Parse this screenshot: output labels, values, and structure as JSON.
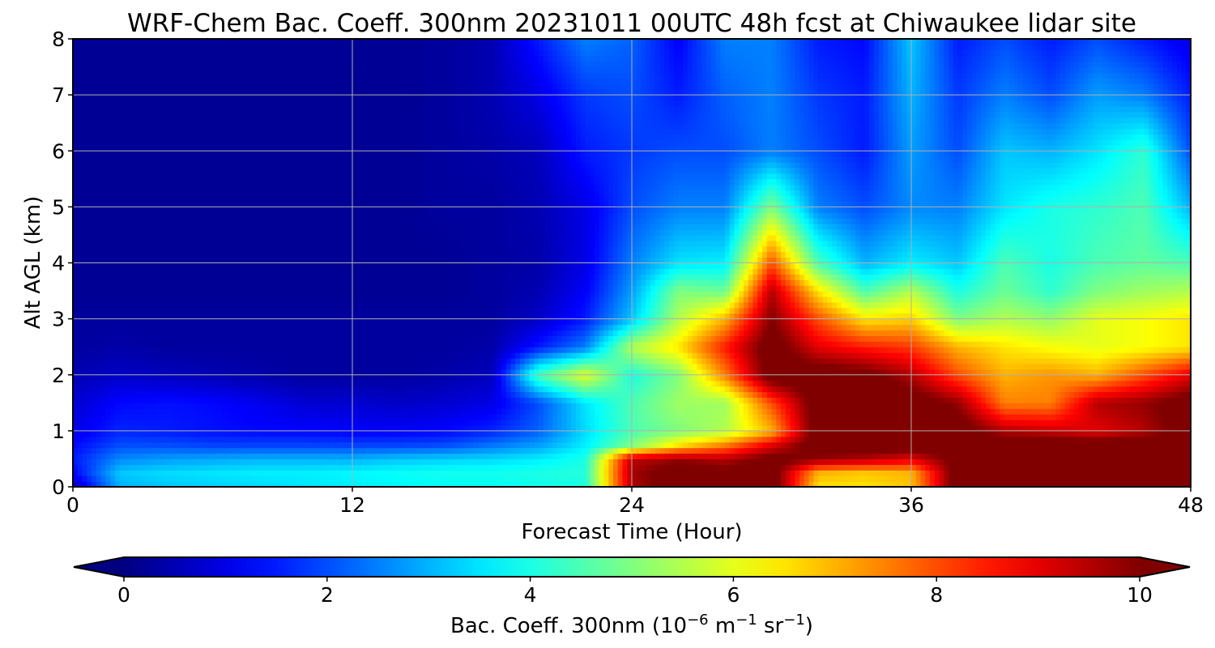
{
  "chart_data": {
    "type": "heatmap",
    "title": "WRF-Chem Bac. Coeff. 300nm  20231011 00UTC 48h fcst at Chiwaukee lidar site",
    "xlabel": "Forecast Time (Hour)",
    "ylabel": "Alt AGL (km)",
    "xlim": [
      0,
      48
    ],
    "ylim": [
      0,
      8
    ],
    "xticks": [
      "0",
      "12",
      "24",
      "36",
      "48"
    ],
    "yticks": [
      "0",
      "1",
      "2",
      "3",
      "4",
      "5",
      "6",
      "7",
      "8"
    ],
    "grid": true,
    "colormap": "jet",
    "colorbar": {
      "orientation": "horizontal",
      "placement": "bottom",
      "extend": "both",
      "range": [
        0,
        10
      ],
      "ticks": [
        "0",
        "2",
        "4",
        "6",
        "8",
        "10"
      ],
      "label_main": "Bac. Coeff. 300nm  (10",
      "label_exp1": "−6",
      "label_mid": " m",
      "label_exp2": "−1",
      "label_mid2": " sr",
      "label_exp3": "−1",
      "label_end": ")"
    },
    "x": [
      0,
      2,
      4,
      6,
      8,
      10,
      12,
      14,
      16,
      18,
      20,
      22,
      24,
      26,
      28,
      30,
      32,
      34,
      36,
      38,
      40,
      42,
      44,
      46,
      48
    ],
    "y": [
      0,
      0.25,
      0.5,
      0.75,
      1,
      1.5,
      2,
      2.5,
      3,
      3.5,
      4,
      5,
      6,
      7,
      8
    ],
    "z": [
      [
        0.5,
        3.0,
        3.2,
        3.3,
        3.4,
        3.5,
        3.6,
        3.7,
        3.8,
        3.8,
        3.9,
        4.0,
        9.5,
        10.5,
        10.2,
        10.5,
        6.5,
        6.5,
        6.8,
        10.5,
        10.5,
        10.5,
        10.5,
        10.5,
        10.5
      ],
      [
        1.2,
        3.2,
        3.4,
        3.5,
        3.6,
        3.6,
        3.7,
        3.8,
        3.9,
        3.9,
        4.0,
        4.1,
        9.6,
        10.5,
        10.2,
        10.5,
        7.0,
        6.8,
        7.0,
        10.5,
        10.5,
        10.5,
        10.5,
        10.5,
        10.5
      ],
      [
        1.5,
        2.6,
        2.8,
        2.9,
        3.0,
        3.0,
        3.0,
        3.2,
        3.3,
        3.4,
        3.6,
        4.0,
        9.4,
        9.8,
        9.5,
        10.3,
        9.8,
        9.5,
        9.0,
        10.3,
        10.5,
        10.5,
        10.5,
        10.5,
        10.5
      ],
      [
        1.3,
        2.0,
        2.0,
        1.9,
        1.9,
        1.9,
        1.9,
        1.9,
        2.0,
        2.4,
        2.8,
        3.6,
        5.0,
        6.5,
        7.5,
        9.0,
        10.5,
        10.5,
        10.5,
        10.5,
        10.5,
        10.5,
        10.5,
        10.5,
        10.5
      ],
      [
        1.0,
        1.6,
        1.5,
        1.4,
        1.3,
        1.3,
        1.2,
        1.2,
        1.3,
        1.6,
        2.2,
        3.4,
        4.5,
        5.0,
        5.5,
        7.0,
        10.5,
        10.5,
        10.5,
        10.5,
        9.5,
        9.3,
        9.0,
        9.5,
        10.5
      ],
      [
        0.8,
        1.3,
        1.4,
        1.3,
        1.1,
        0.8,
        0.8,
        0.7,
        0.8,
        1.0,
        2.0,
        3.5,
        4.5,
        5.3,
        5.3,
        8.0,
        10.5,
        10.5,
        10.5,
        9.8,
        7.5,
        7.5,
        9.5,
        9.8,
        10.5
      ],
      [
        0.5,
        0.7,
        0.6,
        0.5,
        0.4,
        0.3,
        0.3,
        0.3,
        0.4,
        0.6,
        4.5,
        6.0,
        4.0,
        5.0,
        7.5,
        10.5,
        10.5,
        10.3,
        9.5,
        8.0,
        7.0,
        7.3,
        7.0,
        8.0,
        9.0
      ],
      [
        0.3,
        0.4,
        0.3,
        0.3,
        0.3,
        0.3,
        0.3,
        0.3,
        0.3,
        0.4,
        1.5,
        2.5,
        5.5,
        6.5,
        8.5,
        10.5,
        9.0,
        8.5,
        8.2,
        7.0,
        6.5,
        6.2,
        6.0,
        6.2,
        6.5
      ],
      [
        0.3,
        0.3,
        0.3,
        0.3,
        0.3,
        0.3,
        0.3,
        0.3,
        0.3,
        0.3,
        0.7,
        1.5,
        3.2,
        5.5,
        7.0,
        10.0,
        8.0,
        6.5,
        6.7,
        5.0,
        5.5,
        5.2,
        6.0,
        6.2,
        6.5
      ],
      [
        0.2,
        0.2,
        0.2,
        0.2,
        0.2,
        0.2,
        0.2,
        0.2,
        0.2,
        0.3,
        0.5,
        1.2,
        2.8,
        5.0,
        4.8,
        9.5,
        6.5,
        4.5,
        5.5,
        4.0,
        4.8,
        4.2,
        5.0,
        5.3,
        5.5
      ],
      [
        0.2,
        0.2,
        0.2,
        0.2,
        0.2,
        0.2,
        0.2,
        0.2,
        0.2,
        0.3,
        0.4,
        1.0,
        2.5,
        3.5,
        3.6,
        8.0,
        4.5,
        3.0,
        3.6,
        3.2,
        4.5,
        4.0,
        4.5,
        4.7,
        4.5
      ],
      [
        0.2,
        0.2,
        0.2,
        0.2,
        0.2,
        0.2,
        0.2,
        0.2,
        0.3,
        0.3,
        0.5,
        1.0,
        2.0,
        2.5,
        2.5,
        5.0,
        2.5,
        2.0,
        2.6,
        2.5,
        3.5,
        4.0,
        4.2,
        4.5,
        3.0
      ],
      [
        0.2,
        0.2,
        0.2,
        0.2,
        0.2,
        0.2,
        0.2,
        0.2,
        0.3,
        0.4,
        0.6,
        1.5,
        1.8,
        2.0,
        2.0,
        2.5,
        2.0,
        1.5,
        2.8,
        2.0,
        3.2,
        3.0,
        3.5,
        4.2,
        2.0
      ],
      [
        0.2,
        0.2,
        0.2,
        0.2,
        0.2,
        0.2,
        0.2,
        0.2,
        0.3,
        0.5,
        1.0,
        1.8,
        2.0,
        1.5,
        2.2,
        2.5,
        1.8,
        1.5,
        3.0,
        1.8,
        2.5,
        2.0,
        2.8,
        2.5,
        1.5
      ],
      [
        0.2,
        0.2,
        0.2,
        0.2,
        0.2,
        0.2,
        0.2,
        0.2,
        0.3,
        0.5,
        1.5,
        2.5,
        2.2,
        1.2,
        2.5,
        2.5,
        1.5,
        1.3,
        3.2,
        1.5,
        2.0,
        1.5,
        2.0,
        1.5,
        1.0
      ]
    ]
  }
}
